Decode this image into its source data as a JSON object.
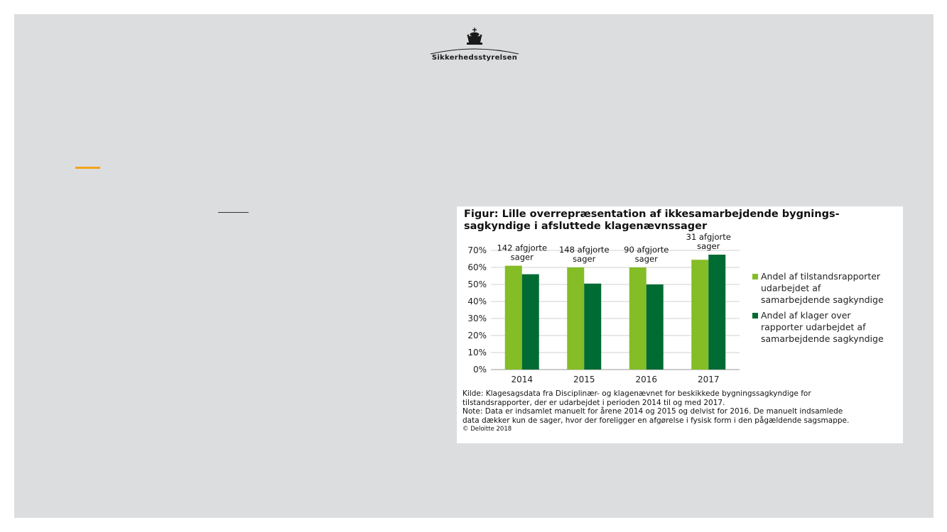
{
  "brand": {
    "name": "Sikkerhedsstyrelsen"
  },
  "colors": {
    "background": "#dcdddf",
    "accent": "#f2a51b",
    "series1": "#84bd26",
    "series2": "#006b33"
  },
  "figure": {
    "title_line1": "Figur: Lille overrepræsentation af ikkesamarbejdende bygnings-",
    "title_line2": "sagkyndige i afsluttede klagenævnssager",
    "source_line1": "Kilde: Klagesagsdata fra Disciplinær- og klagenævnet for beskikkede bygningssagkyndige for",
    "source_line2": "tilstandsrapporter, der er udarbejdet i perioden 2014 til og med 2017.",
    "note_line1": "Note: Data er indsamlet manuelt for årene 2014 og 2015 og delvist for 2016. De manuelt indsamlede",
    "note_line2": "data dækker kun de sager, hvor der foreligger en afgørelse i fysisk form i den pågældende sagsmappe.",
    "copyright": "© Deloitte 2018"
  },
  "chart_data": {
    "type": "bar",
    "categories": [
      "2014",
      "2015",
      "2016",
      "2017"
    ],
    "series": [
      {
        "name": "Andel af tilstandsrapporter udarbejdet af samarbejdende sagkyndige",
        "values": [
          61,
          60,
          60,
          64.5
        ]
      },
      {
        "name": "Andel af klager over rapporter udarbejdet af samarbejdende sagkyndige",
        "values": [
          56,
          50.5,
          50,
          67.5
        ]
      }
    ],
    "legend_lines": [
      [
        "Andel af tilstandsrapporter",
        "udarbejdet af",
        "samarbejdende sagkyndige"
      ],
      [
        "Andel af klager over",
        "rapporter udarbejdet af",
        "samarbejdende sagkyndige"
      ]
    ],
    "annotations": [
      [
        "142 afgjorte",
        "sager"
      ],
      [
        "148 afgjorte",
        "sager"
      ],
      [
        "90 afgjorte",
        "sager"
      ],
      [
        "31 afgjorte",
        "sager"
      ]
    ],
    "yticks": [
      "0%",
      "10%",
      "20%",
      "30%",
      "40%",
      "50%",
      "60%",
      "70%"
    ],
    "ylim": [
      0,
      70
    ],
    "grid": true,
    "legend_position": "right"
  }
}
